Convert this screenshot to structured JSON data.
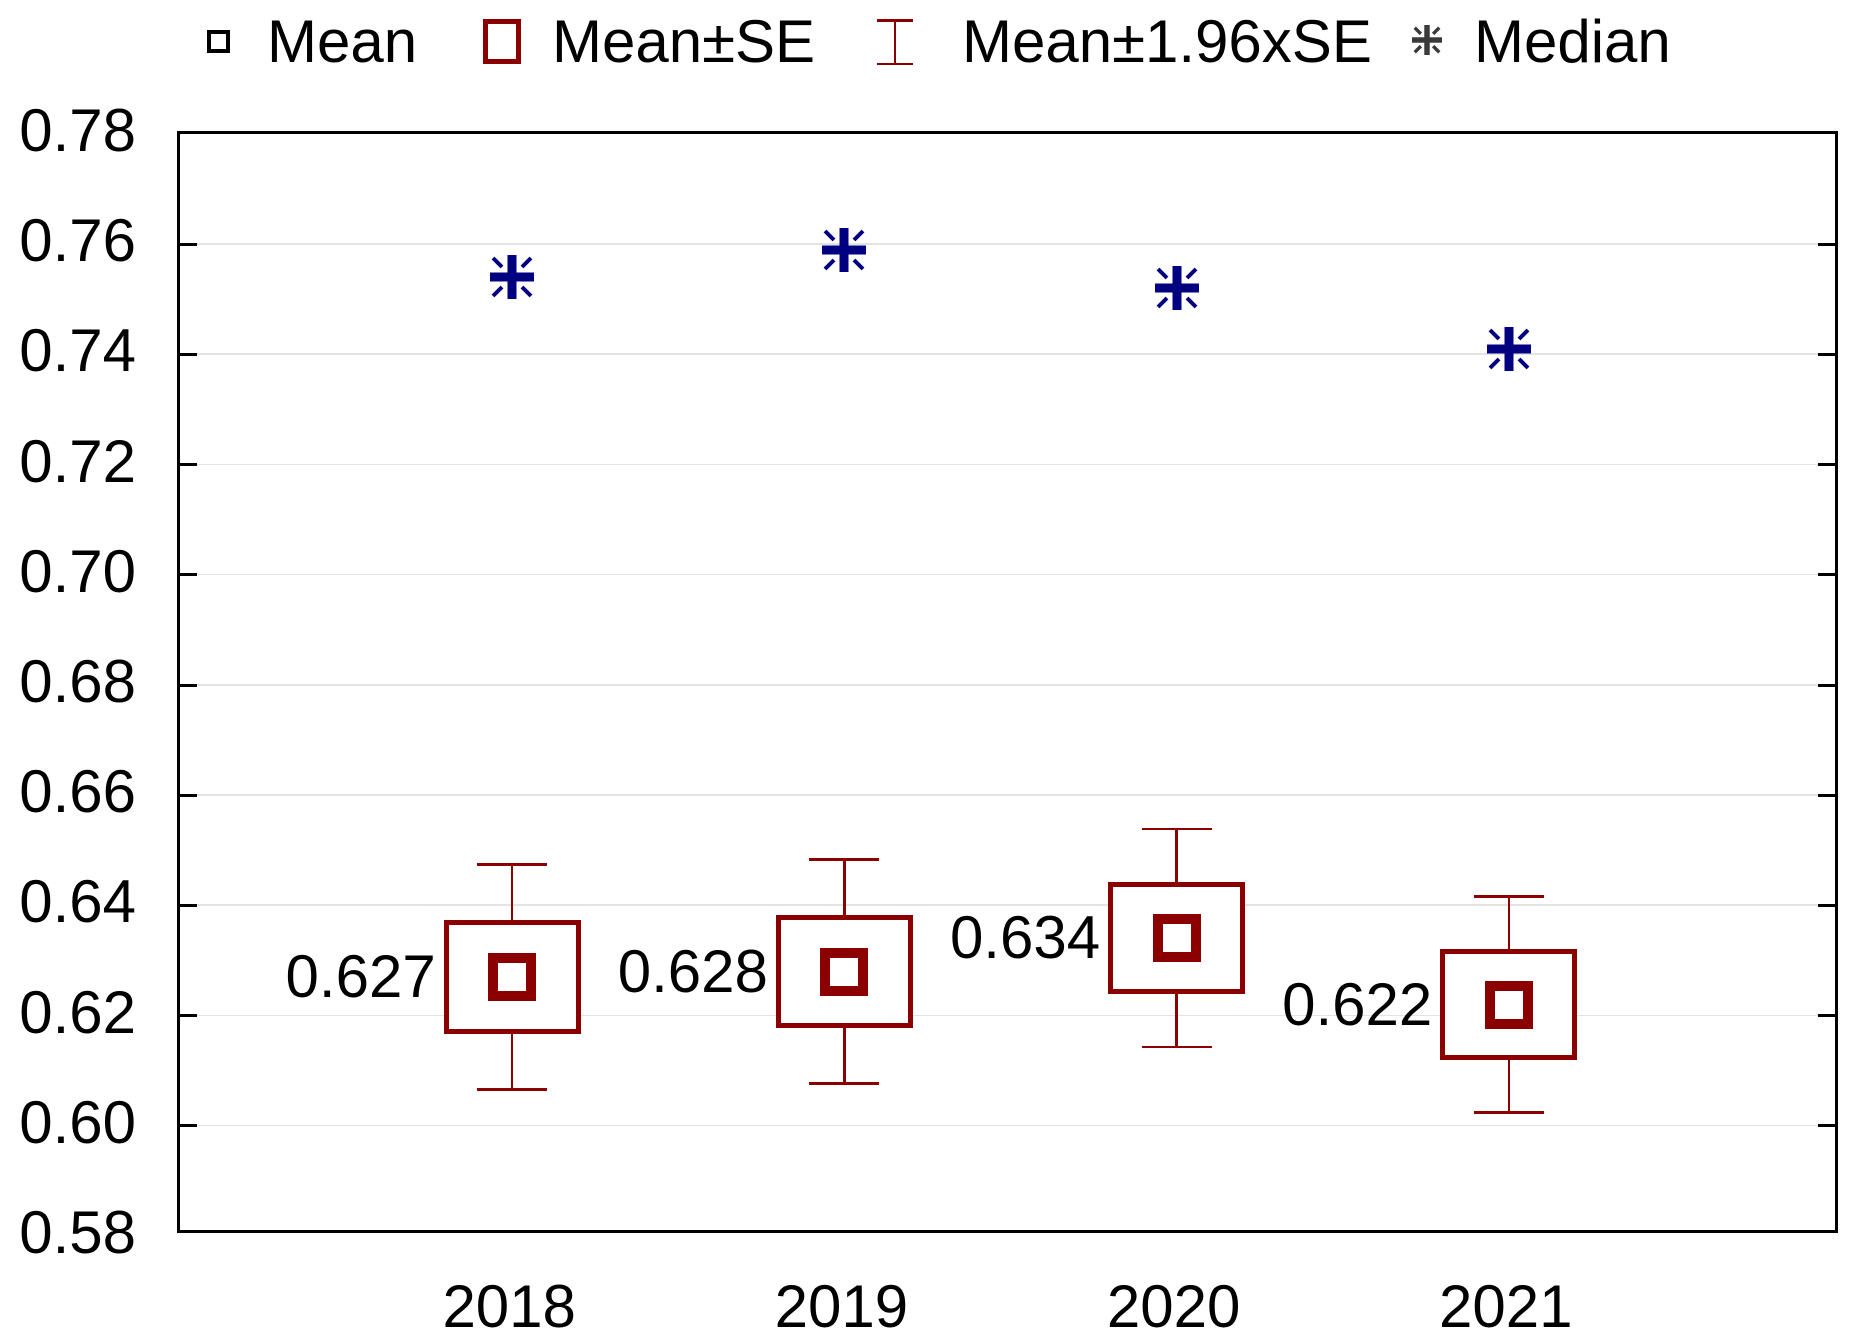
{
  "legend": {
    "items": [
      {
        "label": "Mean",
        "marker": "open-square-marker"
      },
      {
        "label": "Mean±SE",
        "marker": "open-box-marker"
      },
      {
        "label": "Mean±1.96xSE",
        "marker": "error-bar-marker"
      },
      {
        "label": "Median",
        "marker": "asterisk-marker"
      }
    ]
  },
  "colors": {
    "box_and_whisker": "#8B0000",
    "median_marker": "#000080",
    "gridline": "#e3e3e3",
    "frame": "#000000",
    "text": "#000000",
    "legend_median_glyph": "#3a3a3a"
  },
  "chart_data": {
    "type": "box-whisker-means",
    "title": "",
    "xlabel": "",
    "ylabel": "",
    "categories": [
      "2018",
      "2019",
      "2020",
      "2021"
    ],
    "series": [
      {
        "name": "Mean",
        "values": [
          0.627,
          0.628,
          0.634,
          0.622
        ]
      },
      {
        "name": "Mean±SE",
        "low": [
          0.6166,
          0.6177,
          0.6239,
          0.612
        ],
        "high": [
          0.6374,
          0.6383,
          0.6443,
          0.632
        ]
      },
      {
        "name": "Mean±1.96xSE",
        "low": [
          0.6066,
          0.6077,
          0.6143,
          0.6024
        ],
        "high": [
          0.6474,
          0.6483,
          0.6539,
          0.6416
        ]
      },
      {
        "name": "Median",
        "values": [
          0.754,
          0.759,
          0.752,
          0.741
        ]
      }
    ],
    "point_labels": [
      "0.627",
      "0.628",
      "0.634",
      "0.622"
    ],
    "ylim": [
      0.58,
      0.78
    ],
    "ytick_labels": [
      "0.78",
      "0.76",
      "0.74",
      "0.72",
      "0.70",
      "0.68",
      "0.66",
      "0.64",
      "0.62",
      "0.60",
      "0.58"
    ],
    "ytick_step": 0.02,
    "grid": "horizontal",
    "legend_position": "top"
  }
}
